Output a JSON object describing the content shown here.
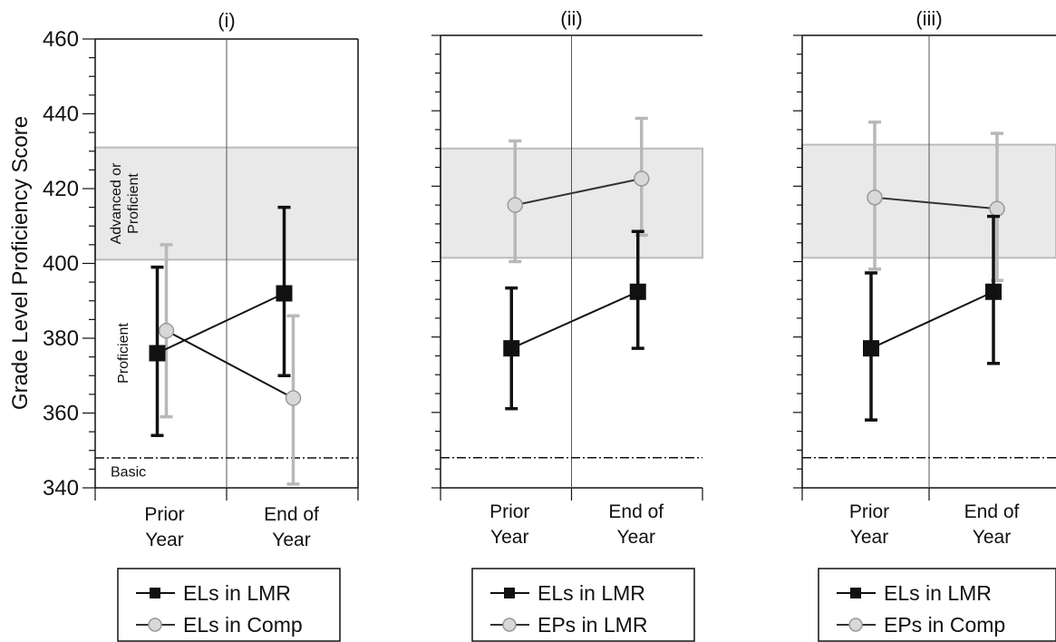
{
  "y_axis_label": "Grade Level Proficiency Score",
  "band_labels": {
    "advanced_line1": "Advanced or",
    "advanced_line2": "Proficient",
    "proficient": "Proficient",
    "basic": "Basic"
  },
  "colors": {
    "els_lmr": "#111111",
    "comparison_line": "#b8b8b8",
    "comparison_marker_fill": "#d8d8d8",
    "band_fill": "#e9e9e9",
    "band_border": "#bbbbbb"
  },
  "chart_data": [
    {
      "type": "line",
      "title": "(i)",
      "categories": [
        [
          "Prior",
          "Year"
        ],
        [
          "End of",
          "Year"
        ]
      ],
      "ylim": [
        340,
        460
      ],
      "yticks": [
        340,
        360,
        380,
        400,
        420,
        440,
        460
      ],
      "ytick_labels_shown": true,
      "proficient_band": [
        401,
        431
      ],
      "basic_cutoff": 348,
      "show_band_labels": true,
      "series": [
        {
          "name": "ELs in LMR",
          "marker": "square",
          "values": [
            376,
            392
          ],
          "ci_low": [
            354,
            370
          ],
          "ci_high": [
            399,
            415
          ]
        },
        {
          "name": "ELs in Comp",
          "marker": "circle",
          "values": [
            382,
            364
          ],
          "ci_low": [
            359,
            341
          ],
          "ci_high": [
            405,
            386
          ]
        }
      ]
    },
    {
      "type": "line",
      "title": "(ii)",
      "categories": [
        [
          "Prior",
          "Year"
        ],
        [
          "End of",
          "Year"
        ]
      ],
      "ylim": [
        340,
        460
      ],
      "yticks": [
        340,
        360,
        380,
        400,
        420,
        440,
        460
      ],
      "ytick_labels_shown": false,
      "proficient_band": [
        401,
        430
      ],
      "basic_cutoff": 348,
      "show_band_labels": false,
      "series": [
        {
          "name": "ELs in LMR",
          "marker": "square",
          "values": [
            377,
            392
          ],
          "ci_low": [
            361,
            377
          ],
          "ci_high": [
            393,
            408
          ]
        },
        {
          "name": "EPs in LMR",
          "marker": "circle",
          "values": [
            415,
            422
          ],
          "ci_low": [
            400,
            407
          ],
          "ci_high": [
            432,
            438
          ]
        }
      ]
    },
    {
      "type": "line",
      "title": "(iii)",
      "categories": [
        [
          "Prior",
          "Year"
        ],
        [
          "End of",
          "Year"
        ]
      ],
      "ylim": [
        340,
        460
      ],
      "yticks": [
        340,
        360,
        380,
        400,
        420,
        440,
        460
      ],
      "ytick_labels_shown": false,
      "proficient_band": [
        401,
        431
      ],
      "basic_cutoff": 348,
      "show_band_labels": false,
      "series": [
        {
          "name": "ELs in LMR",
          "marker": "square",
          "values": [
            377,
            392
          ],
          "ci_low": [
            358,
            373
          ],
          "ci_high": [
            397,
            412
          ]
        },
        {
          "name": "EPs in Comp",
          "marker": "circle",
          "values": [
            417,
            414
          ],
          "ci_low": [
            398,
            395
          ],
          "ci_high": [
            437,
            434
          ]
        }
      ]
    }
  ]
}
